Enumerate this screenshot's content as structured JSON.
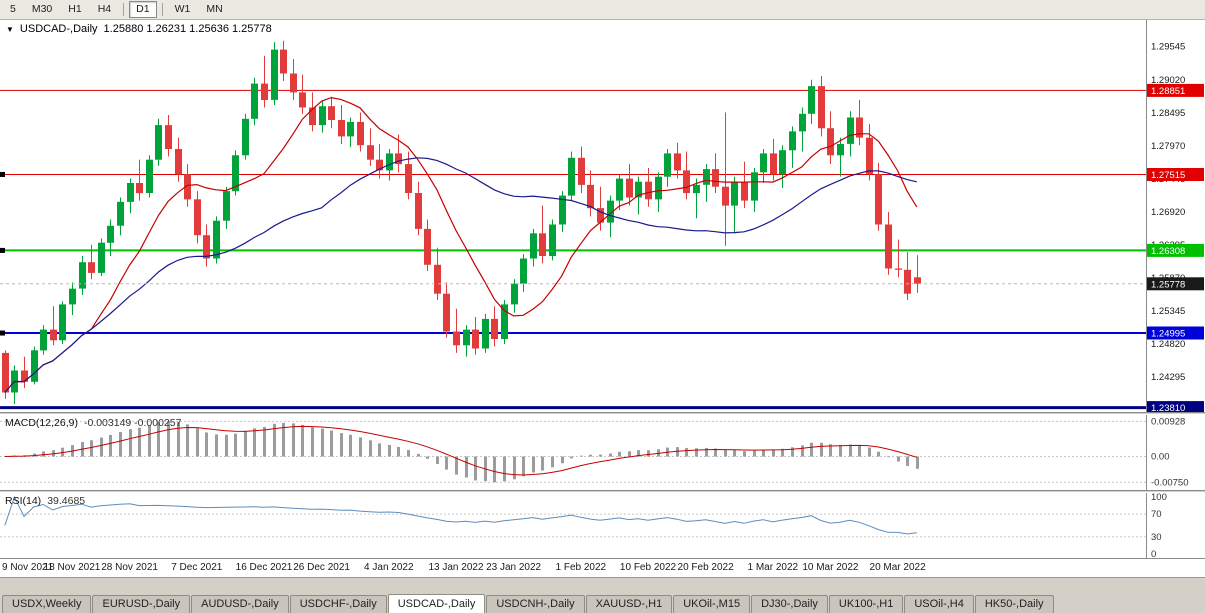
{
  "toolbar": {
    "timeframes": [
      {
        "label": "5"
      },
      {
        "label": "M30"
      },
      {
        "label": "H1"
      },
      {
        "label": "H4",
        "sep_after": true
      },
      {
        "label": "D1",
        "active": true,
        "sep_after": true
      },
      {
        "label": "W1"
      },
      {
        "label": "MN"
      }
    ]
  },
  "chart_data": {
    "type": "candlestick",
    "symbol_title": "USDCAD-,Daily",
    "ohlc_text": "1.25880 1.26231 1.25636 1.25778",
    "ohlc": {
      "open": 1.2588,
      "high": 1.26231,
      "low": 1.25636,
      "close": 1.25778
    },
    "colors": {
      "bull": "#00A339",
      "bear": "#E23B3B"
    },
    "y_axis": {
      "min": 1.2374,
      "max": 1.2997,
      "ticks": [
        "1.29545",
        "1.29020",
        "1.28495",
        "1.27970",
        "1.27445",
        "1.26920",
        "1.26395",
        "1.25870",
        "1.25345",
        "1.24820",
        "1.24295",
        "1.23770"
      ]
    },
    "levels": [
      {
        "price": 1.28851,
        "label": "1.28851",
        "color": "#E00000",
        "width": 1
      },
      {
        "price": 1.27515,
        "label": "1.27515",
        "color": "#E00000",
        "width": 1,
        "handle": true
      },
      {
        "price": 1.26308,
        "label": "1.26308",
        "color": "#00C000",
        "width": 2,
        "handle": true
      },
      {
        "price": 1.24995,
        "label": "1.24995",
        "color": "#0000D8",
        "width": 2,
        "handle": true
      },
      {
        "price": 1.2381,
        "label": "1.23810",
        "color": "#000080",
        "width": 3
      }
    ],
    "current_price": {
      "value": 1.25778,
      "label": "1.25778",
      "color": "#1A1A1A"
    },
    "moving_averages": [
      {
        "name": "fast",
        "period": 10,
        "color": "#C40000"
      },
      {
        "name": "slow",
        "period": 34,
        "color": "#1A1A8C"
      }
    ],
    "macd": {
      "label": "MACD(12,26,9)",
      "values_text": "-0.003149 -0.000257",
      "fast": 12,
      "slow": 26,
      "signal": 9,
      "ticks": [
        "0.00928",
        "0.00",
        "-0.00750"
      ],
      "hist_color": "#9C9C9C",
      "signal_color": "#C40000"
    },
    "rsi": {
      "label": "RSI(14)",
      "value_text": "39.4685",
      "period": 14,
      "color": "#5C8DBC",
      "ticks": [
        {
          "v": 100,
          "label": "100"
        },
        {
          "v": 70,
          "label": "70",
          "dashed": true
        },
        {
          "v": 30,
          "label": "30",
          "dashed": true
        },
        {
          "v": 0,
          "label": "0"
        }
      ]
    },
    "date_labels": [
      {
        "label": "9 Nov 2021",
        "index": 0
      },
      {
        "label": "18 Nov 2021",
        "index": 7
      },
      {
        "label": "28 Nov 2021",
        "index": 13
      },
      {
        "label": "7 Dec 2021",
        "index": 20
      },
      {
        "label": "16 Dec 2021",
        "index": 27
      },
      {
        "label": "26 Dec 2021",
        "index": 33
      },
      {
        "label": "4 Jan 2022",
        "index": 40
      },
      {
        "label": "13 Jan 2022",
        "index": 47
      },
      {
        "label": "23 Jan 2022",
        "index": 53
      },
      {
        "label": "1 Feb 2022",
        "index": 60
      },
      {
        "label": "10 Feb 2022",
        "index": 67
      },
      {
        "label": "20 Feb 2022",
        "index": 73
      },
      {
        "label": "1 Mar 2022",
        "index": 80
      },
      {
        "label": "10 Mar 2022",
        "index": 86
      },
      {
        "label": "20 Mar 2022",
        "index": 93
      }
    ],
    "candles": [
      [
        1.2468,
        1.2472,
        1.2395,
        1.2405
      ],
      [
        1.2405,
        1.2448,
        1.2387,
        1.244
      ],
      [
        1.244,
        1.2462,
        1.2412,
        1.2422
      ],
      [
        1.2422,
        1.2478,
        1.2418,
        1.2472
      ],
      [
        1.2472,
        1.2512,
        1.2465,
        1.2505
      ],
      [
        1.2505,
        1.2542,
        1.248,
        1.2488
      ],
      [
        1.2488,
        1.255,
        1.2482,
        1.2545
      ],
      [
        1.2545,
        1.258,
        1.2528,
        1.257
      ],
      [
        1.257,
        1.2622,
        1.256,
        1.2612
      ],
      [
        1.2612,
        1.264,
        1.2585,
        1.2595
      ],
      [
        1.2595,
        1.265,
        1.259,
        1.2643
      ],
      [
        1.2643,
        1.268,
        1.2622,
        1.267
      ],
      [
        1.267,
        1.2715,
        1.2655,
        1.2708
      ],
      [
        1.2708,
        1.2745,
        1.269,
        1.2738
      ],
      [
        1.2738,
        1.2775,
        1.271,
        1.2722
      ],
      [
        1.2722,
        1.2782,
        1.2715,
        1.2775
      ],
      [
        1.2775,
        1.284,
        1.2765,
        1.283
      ],
      [
        1.283,
        1.2846,
        1.278,
        1.2792
      ],
      [
        1.2792,
        1.281,
        1.274,
        1.2752
      ],
      [
        1.2752,
        1.2768,
        1.27,
        1.2712
      ],
      [
        1.2712,
        1.2725,
        1.2642,
        1.2655
      ],
      [
        1.2655,
        1.2672,
        1.2605,
        1.2618
      ],
      [
        1.2618,
        1.2685,
        1.261,
        1.2678
      ],
      [
        1.2678,
        1.2732,
        1.2665,
        1.2725
      ],
      [
        1.2725,
        1.279,
        1.2718,
        1.2782
      ],
      [
        1.2782,
        1.2848,
        1.2775,
        1.284
      ],
      [
        1.284,
        1.2905,
        1.283,
        1.2896
      ],
      [
        1.2896,
        1.294,
        1.2858,
        1.287
      ],
      [
        1.287,
        1.2962,
        1.2862,
        1.295
      ],
      [
        1.295,
        1.2964,
        1.29,
        1.2912
      ],
      [
        1.2912,
        1.2935,
        1.287,
        1.2882
      ],
      [
        1.2882,
        1.291,
        1.2848,
        1.2858
      ],
      [
        1.2858,
        1.2882,
        1.282,
        1.283
      ],
      [
        1.283,
        1.2868,
        1.2818,
        1.286
      ],
      [
        1.286,
        1.2875,
        1.2825,
        1.2838
      ],
      [
        1.2838,
        1.2862,
        1.28,
        1.2812
      ],
      [
        1.2812,
        1.2842,
        1.2795,
        1.2835
      ],
      [
        1.2835,
        1.285,
        1.2788,
        1.2798
      ],
      [
        1.2798,
        1.2825,
        1.2765,
        1.2775
      ],
      [
        1.2775,
        1.28,
        1.2745,
        1.2758
      ],
      [
        1.2758,
        1.2792,
        1.2742,
        1.2785
      ],
      [
        1.2785,
        1.2815,
        1.2755,
        1.2768
      ],
      [
        1.2768,
        1.2788,
        1.2712,
        1.2722
      ],
      [
        1.2722,
        1.274,
        1.2655,
        1.2665
      ],
      [
        1.2665,
        1.268,
        1.2598,
        1.2608
      ],
      [
        1.2608,
        1.2635,
        1.2552,
        1.2562
      ],
      [
        1.2562,
        1.258,
        1.2492,
        1.2502
      ],
      [
        1.2502,
        1.2538,
        1.2468,
        1.248
      ],
      [
        1.248,
        1.2512,
        1.2462,
        1.2505
      ],
      [
        1.2505,
        1.2525,
        1.2465,
        1.2475
      ],
      [
        1.2475,
        1.253,
        1.2468,
        1.2522
      ],
      [
        1.2522,
        1.2542,
        1.2478,
        1.249
      ],
      [
        1.249,
        1.2552,
        1.2482,
        1.2545
      ],
      [
        1.2545,
        1.2585,
        1.2532,
        1.2578
      ],
      [
        1.2578,
        1.2625,
        1.2565,
        1.2618
      ],
      [
        1.2618,
        1.2665,
        1.2605,
        1.2658
      ],
      [
        1.2658,
        1.2702,
        1.261,
        1.2622
      ],
      [
        1.2622,
        1.268,
        1.2615,
        1.2672
      ],
      [
        1.2672,
        1.2725,
        1.266,
        1.2718
      ],
      [
        1.2718,
        1.2788,
        1.271,
        1.2778
      ],
      [
        1.2778,
        1.2796,
        1.2722,
        1.2735
      ],
      [
        1.2735,
        1.2758,
        1.2685,
        1.2698
      ],
      [
        1.2698,
        1.2732,
        1.2662,
        1.2675
      ],
      [
        1.2675,
        1.2718,
        1.2652,
        1.271
      ],
      [
        1.271,
        1.2752,
        1.2695,
        1.2745
      ],
      [
        1.2745,
        1.2768,
        1.2702,
        1.2715
      ],
      [
        1.2715,
        1.2748,
        1.2688,
        1.274
      ],
      [
        1.274,
        1.2762,
        1.27,
        1.2712
      ],
      [
        1.2712,
        1.2755,
        1.2692,
        1.2748
      ],
      [
        1.2748,
        1.2792,
        1.2732,
        1.2785
      ],
      [
        1.2785,
        1.2802,
        1.2745,
        1.2758
      ],
      [
        1.2758,
        1.2788,
        1.2712,
        1.2722
      ],
      [
        1.2722,
        1.2745,
        1.2682,
        1.2735
      ],
      [
        1.2735,
        1.2768,
        1.2708,
        1.276
      ],
      [
        1.276,
        1.2785,
        1.2722,
        1.2732
      ],
      [
        1.2732,
        1.285,
        1.2638,
        1.2702
      ],
      [
        1.2702,
        1.2748,
        1.2658,
        1.274
      ],
      [
        1.274,
        1.2772,
        1.2698,
        1.271
      ],
      [
        1.271,
        1.2762,
        1.2692,
        1.2755
      ],
      [
        1.2755,
        1.2792,
        1.2738,
        1.2785
      ],
      [
        1.2785,
        1.2808,
        1.2742,
        1.2752
      ],
      [
        1.2752,
        1.2798,
        1.273,
        1.279
      ],
      [
        1.279,
        1.2828,
        1.2762,
        1.282
      ],
      [
        1.282,
        1.2858,
        1.2788,
        1.2848
      ],
      [
        1.2848,
        1.2902,
        1.2832,
        1.2892
      ],
      [
        1.2892,
        1.2908,
        1.2812,
        1.2825
      ],
      [
        1.2825,
        1.2852,
        1.2768,
        1.2782
      ],
      [
        1.2782,
        1.281,
        1.2748,
        1.28
      ],
      [
        1.28,
        1.2852,
        1.278,
        1.2842
      ],
      [
        1.2842,
        1.287,
        1.2798,
        1.281
      ],
      [
        1.281,
        1.2832,
        1.2742,
        1.2752
      ],
      [
        1.2752,
        1.277,
        1.2662,
        1.2672
      ],
      [
        1.2672,
        1.2692,
        1.2592,
        1.2602
      ],
      [
        1.2602,
        1.2648,
        1.2588,
        1.26
      ],
      [
        1.26,
        1.2628,
        1.2552,
        1.2562
      ],
      [
        1.2588,
        1.26231,
        1.25636,
        1.25778
      ]
    ]
  },
  "tabs": [
    {
      "label": "USDX,Weekly"
    },
    {
      "label": "EURUSD-,Daily"
    },
    {
      "label": "AUDUSD-,Daily"
    },
    {
      "label": "USDCHF-,Daily"
    },
    {
      "label": "USDCAD-,Daily",
      "active": true
    },
    {
      "label": "USDCNH-,Daily"
    },
    {
      "label": "XAUUSD-,H1"
    },
    {
      "label": "UKOil-,M15"
    },
    {
      "label": "DJ30-,Daily"
    },
    {
      "label": "UK100-,H1"
    },
    {
      "label": "USOil-,H4"
    },
    {
      "label": "HK50-,Daily"
    }
  ]
}
